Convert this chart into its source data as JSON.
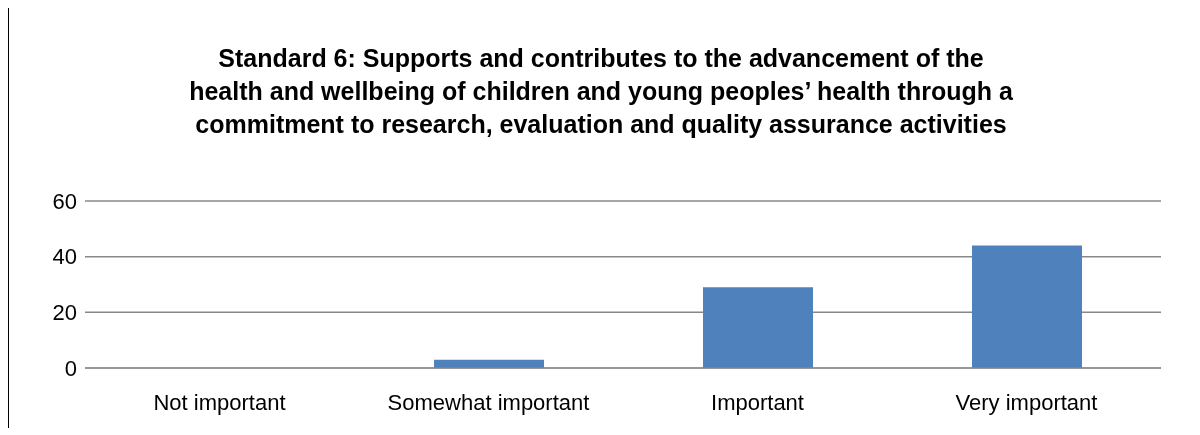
{
  "chart_data": {
    "type": "bar",
    "title": "Standard 6: Supports and contributes to the advancement of the\nhealth and wellbeing of children and young peoples’ health through a\ncommitment to research, evaluation and quality assurance activities",
    "categories": [
      "Not important",
      "Somewhat important",
      "Important",
      "Very important"
    ],
    "values": [
      0,
      3,
      29,
      44
    ],
    "color": "#4f81bd",
    "ylim": [
      0,
      60
    ],
    "yticks": [
      0,
      20,
      40,
      60
    ],
    "grid": "y"
  }
}
